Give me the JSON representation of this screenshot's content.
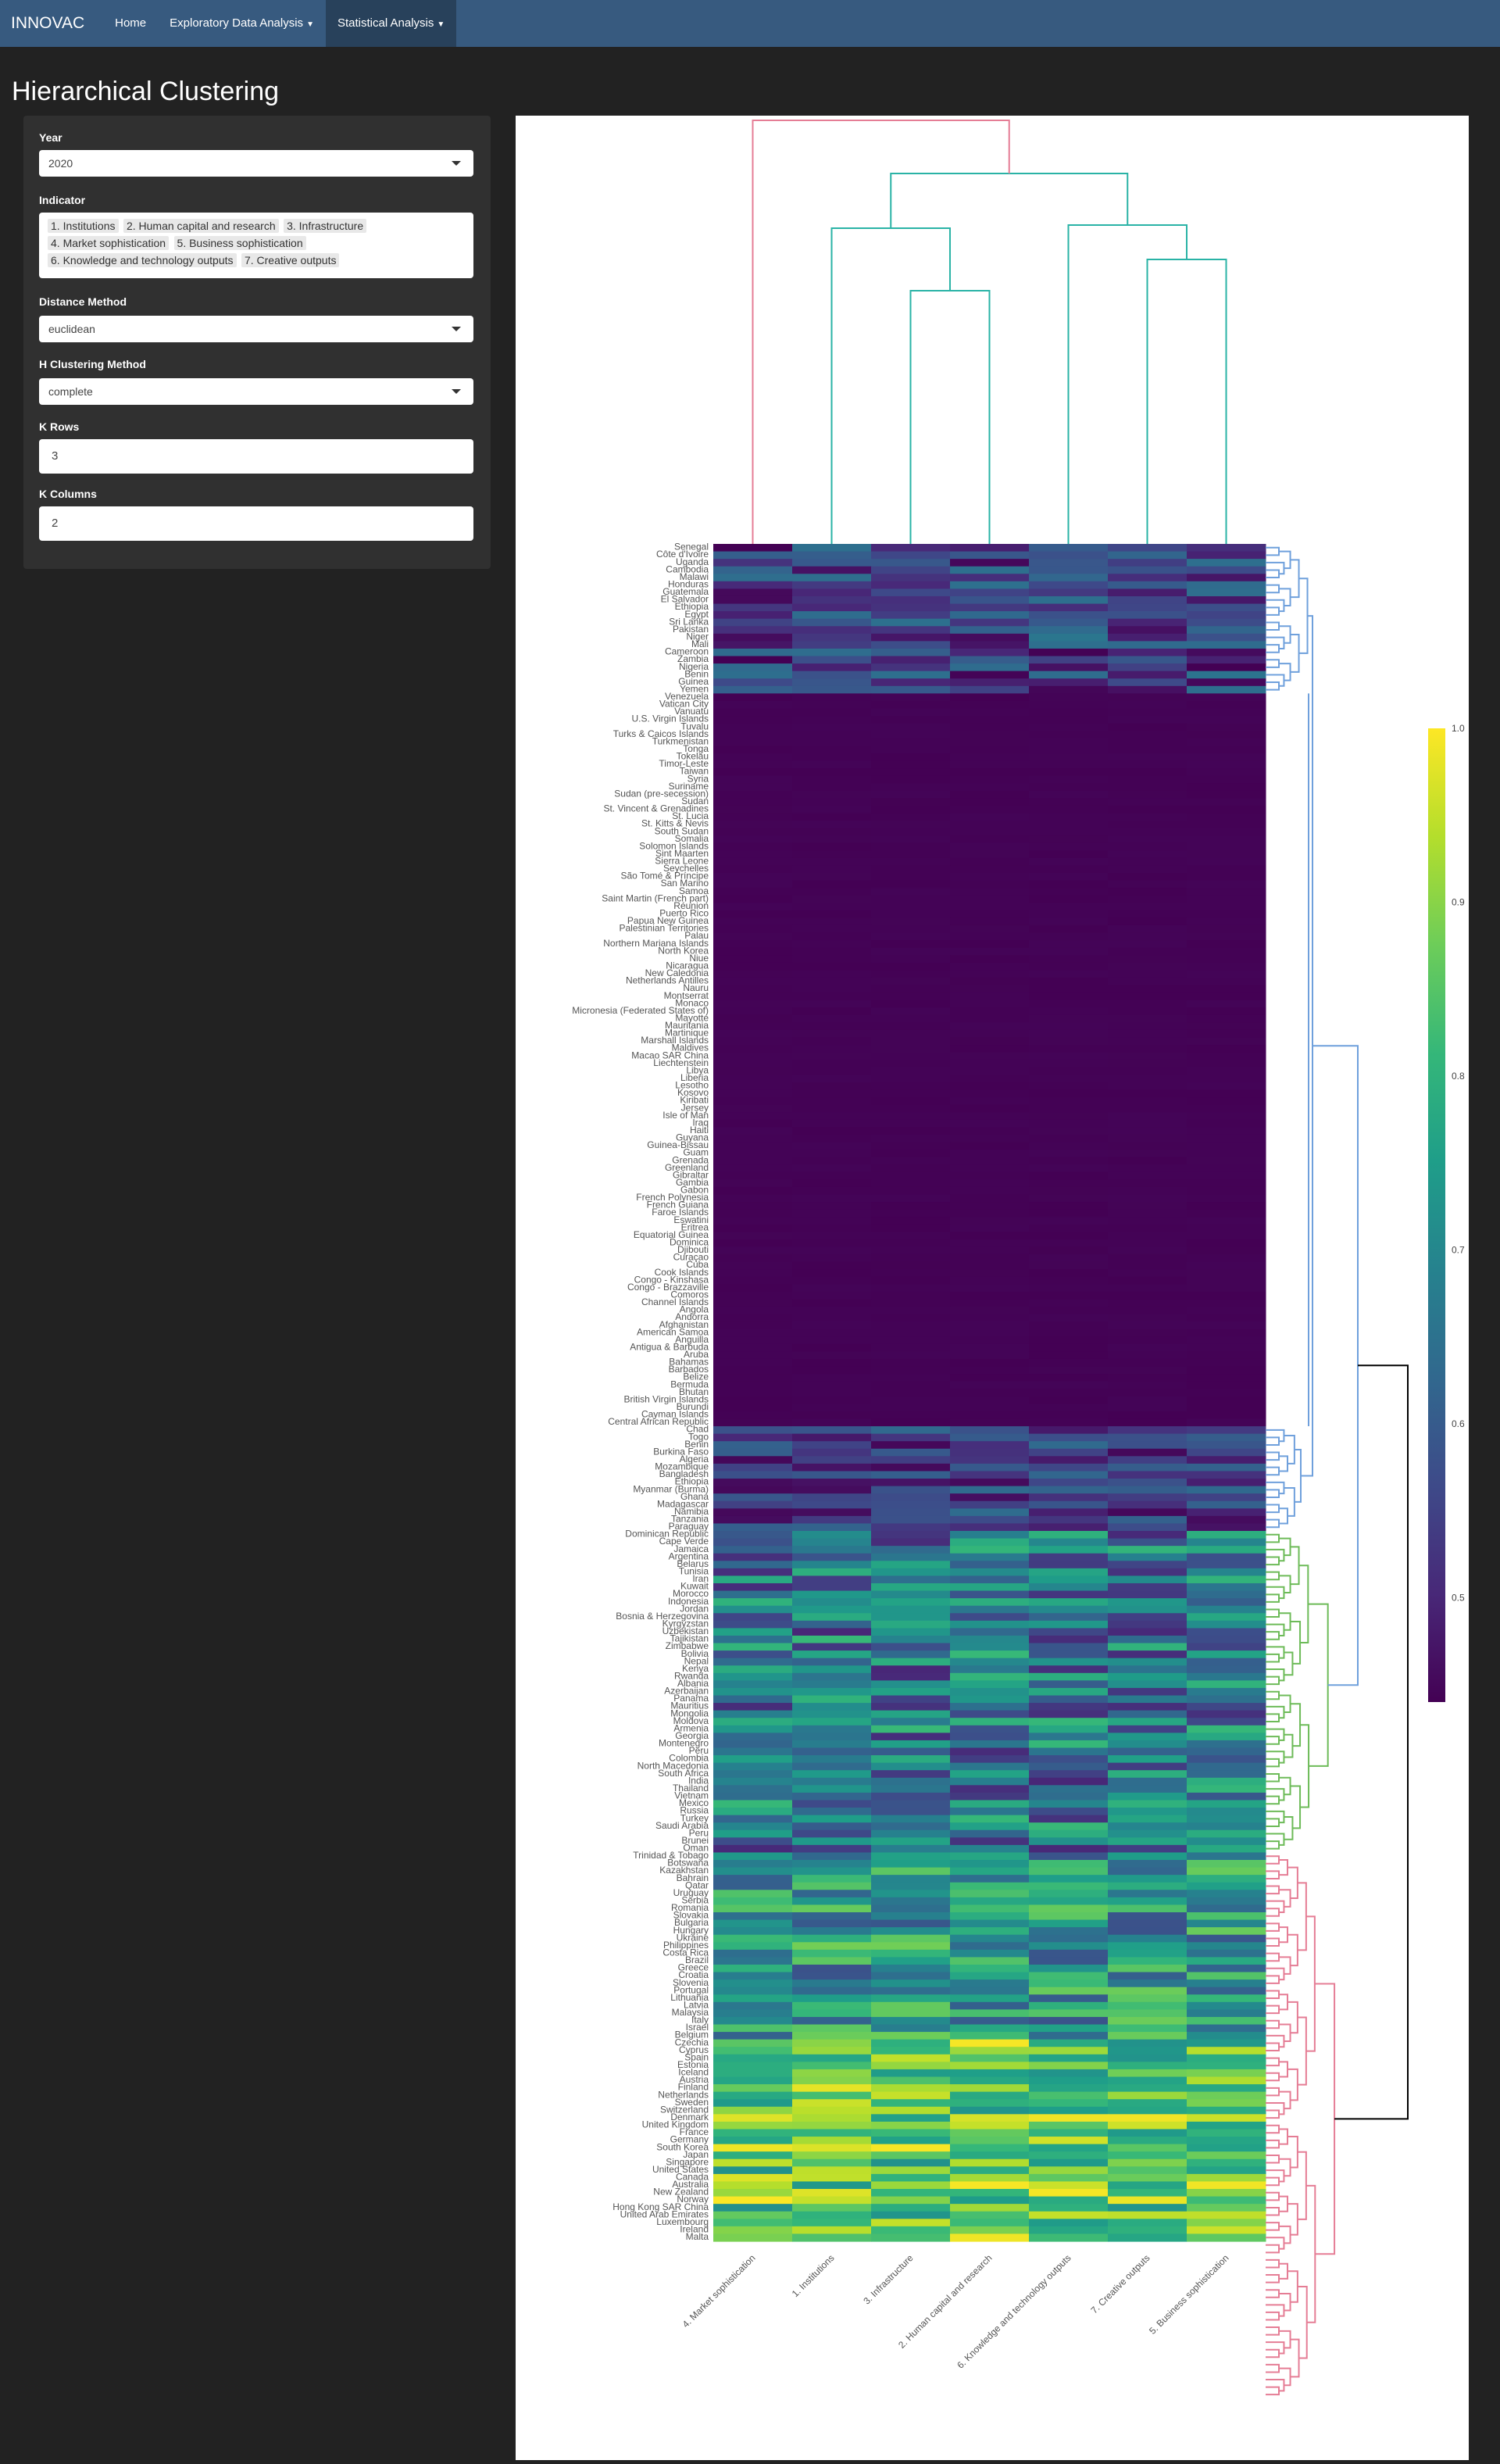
{
  "navbar": {
    "brand": "INNOVAC",
    "items": [
      {
        "label": "Home",
        "dropdown": false,
        "active": false
      },
      {
        "label": "Exploratory Data Analysis",
        "dropdown": true,
        "active": false
      },
      {
        "label": "Statistical Analysis",
        "dropdown": true,
        "active": true
      }
    ]
  },
  "page": {
    "title": "Hierarchical Clustering"
  },
  "sidebar": {
    "year": {
      "label": "Year",
      "value": "2020"
    },
    "indicator": {
      "label": "Indicator",
      "selected": [
        "1. Institutions",
        "2. Human capital and research",
        "3. Infrastructure",
        "4. Market sophistication",
        "5. Business sophistication",
        "6. Knowledge and technology outputs",
        "7. Creative outputs"
      ]
    },
    "distance": {
      "label": "Distance Method",
      "value": "euclidean"
    },
    "hclust": {
      "label": "H Clustering Method",
      "value": "complete"
    },
    "k_rows": {
      "label": "K Rows",
      "value": "3"
    },
    "k_cols": {
      "label": "K Columns",
      "value": "2"
    }
  },
  "chart_data": {
    "type": "heatmap",
    "columns": [
      "4. Market sophistication",
      "1. Institutions",
      "3. Infrastructure",
      "2. Human capital and research",
      "6. Knowledge and technology outputs",
      "7. Creative outputs",
      "5. Business sophistication"
    ],
    "rows": [
      "Senegal",
      "Côte d'Ivoire",
      "Uganda",
      "Cambodia",
      "Malawi",
      "Honduras",
      "Guatemala",
      "El Salvador",
      "Ethiopia",
      "Egypt",
      "Sri Lanka",
      "Pakistan",
      "Niger",
      "Mali",
      "Cameroon",
      "Zambia",
      "Nigeria",
      "Benin",
      "Guinea",
      "Yemen",
      "Venezuela",
      "Vatican City",
      "Vanuatu",
      "U.S. Virgin Islands",
      "Tuvalu",
      "Turks & Caicos Islands",
      "Turkmenistan",
      "Tonga",
      "Tokelau",
      "Timor-Leste",
      "Taiwan",
      "Syria",
      "Suriname",
      "Sudan (pre-secession)",
      "Sudan",
      "St. Vincent & Grenadines",
      "St. Lucia",
      "St. Kitts & Nevis",
      "South Sudan",
      "Somalia",
      "Solomon Islands",
      "Sint Maarten",
      "Sierra Leone",
      "Seychelles",
      "São Tomé & Príncipe",
      "San Marino",
      "Samoa",
      "Saint Martin (French part)",
      "Réunion",
      "Puerto Rico",
      "Papua New Guinea",
      "Palestinian Territories",
      "Palau",
      "Northern Mariana Islands",
      "North Korea",
      "Niue",
      "Nicaragua",
      "New Caledonia",
      "Netherlands Antilles",
      "Nauru",
      "Montserrat",
      "Monaco",
      "Micronesia (Federated States of)",
      "Mayotte",
      "Mauritania",
      "Martinique",
      "Marshall Islands",
      "Maldives",
      "Macao SAR China",
      "Liechtenstein",
      "Libya",
      "Liberia",
      "Lesotho",
      "Kosovo",
      "Kiribati",
      "Jersey",
      "Isle of Man",
      "Iraq",
      "Haiti",
      "Guyana",
      "Guinea-Bissau",
      "Guam",
      "Grenada",
      "Greenland",
      "Gibraltar",
      "Gambia",
      "Gabon",
      "French Polynesia",
      "French Guiana",
      "Faroe Islands",
      "Eswatini",
      "Eritrea",
      "Equatorial Guinea",
      "Dominica",
      "Djibouti",
      "Curaçao",
      "Cuba",
      "Cook Islands",
      "Congo - Kinshasa",
      "Congo - Brazzaville",
      "Comoros",
      "Channel Islands",
      "Angola",
      "Andorra",
      "Afghanistan",
      "American Samoa",
      "Anguilla",
      "Antigua & Barbuda",
      "Aruba",
      "Bahamas",
      "Barbados",
      "Belize",
      "Bermuda",
      "Bhutan",
      "British Virgin Islands",
      "Burundi",
      "Cayman Islands",
      "Central African Republic",
      "Chad",
      "Togo",
      "Benin",
      "Burkina Faso",
      "Algeria",
      "Mozambique",
      "Bangladesh",
      "Ethiopia",
      "Myanmar (Burma)",
      "Ghana",
      "Madagascar",
      "Namibia",
      "Tanzania",
      "Paraguay",
      "Dominican Republic",
      "Cape Verde",
      "Jamaica",
      "Argentina",
      "Belarus",
      "Tunisia",
      "Iran",
      "Kuwait",
      "Morocco",
      "Indonesia",
      "Jordan",
      "Bosnia & Herzegovina",
      "Kyrgyzstan",
      "Uzbekistan",
      "Tajikistan",
      "Zimbabwe",
      "Bolivia",
      "Nepal",
      "Kenya",
      "Rwanda",
      "Albania",
      "Azerbaijan",
      "Panama",
      "Mauritius",
      "Mongolia",
      "Moldova",
      "Armenia",
      "Georgia",
      "Montenegro",
      "Peru",
      "Colombia",
      "North Macedonia",
      "South Africa",
      "India",
      "Thailand",
      "Vietnam",
      "Mexico",
      "Russia",
      "Turkey",
      "Saudi Arabia",
      "Peru",
      "Brunei",
      "Oman",
      "Trinidad & Tobago",
      "Botswana",
      "Kazakhstan",
      "Bahrain",
      "Qatar",
      "Uruguay",
      "Serbia",
      "Romania",
      "Slovakia",
      "Bulgaria",
      "Hungary",
      "Ukraine",
      "Philippines",
      "Costa Rica",
      "Brazil",
      "Greece",
      "Croatia",
      "Slovenia",
      "Portugal",
      "Lithuania",
      "Latvia",
      "Malaysia",
      "Italy",
      "Israel",
      "Belgium",
      "Czechia",
      "Cyprus",
      "Spain",
      "Estonia",
      "Iceland",
      "Austria",
      "Finland",
      "Netherlands",
      "Sweden",
      "Switzerland",
      "Denmark",
      "United Kingdom",
      "France",
      "Germany",
      "South Korea",
      "Japan",
      "Singapore",
      "United States",
      "Canada",
      "Australia",
      "New Zealand",
      "Norway",
      "Hong Kong SAR China",
      "United Arab Emirates",
      "Luxembourg",
      "Ireland",
      "Malta"
    ],
    "colorscale": "viridis",
    "colorbar_ticks": [
      1.0,
      0.9,
      0.8,
      0.7,
      0.6,
      0.5
    ],
    "zrange": [
      0.44,
      1.0
    ],
    "row_cluster_colors": [
      "#6fa0dc",
      "#6dbb58",
      "#e57d95"
    ],
    "col_cluster_colors": [
      "#e57d95",
      "#2ab3a6"
    ],
    "branch_color": "#000000"
  }
}
